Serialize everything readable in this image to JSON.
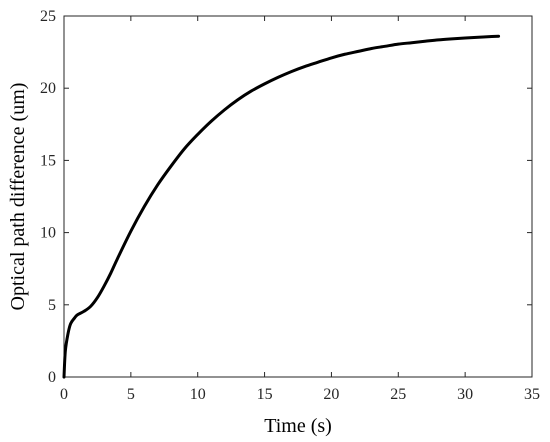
{
  "chart_data": {
    "type": "line",
    "title": "",
    "xlabel": "Time (s)",
    "ylabel": "Optical path difference (um)",
    "xlim": [
      0,
      35
    ],
    "ylim": [
      0,
      25
    ],
    "xticks": [
      0,
      5,
      10,
      15,
      20,
      25,
      30,
      35
    ],
    "yticks": [
      0,
      5,
      10,
      15,
      20,
      25
    ],
    "grid": false,
    "legend": "none",
    "box": true,
    "line_color": "#000000",
    "series": [
      {
        "x": [
          0,
          0.1,
          0.3,
          0.5,
          0.8,
          1.0,
          1.5,
          2.0,
          2.5,
          3.0,
          3.5,
          4.0,
          5.0,
          6.0,
          7.0,
          8.0,
          9.0,
          10.0,
          11.0,
          12.0,
          13.0,
          14.0,
          15.0,
          16.0,
          17.0,
          18.0,
          19.0,
          20.0,
          21.0,
          22.0,
          23.0,
          24.0,
          25.0,
          26.0,
          27.0,
          28.0,
          29.0,
          30.0,
          31.0,
          32.0,
          32.5
        ],
        "y": [
          0,
          1.8,
          3.0,
          3.7,
          4.1,
          4.3,
          4.55,
          4.9,
          5.5,
          6.3,
          7.2,
          8.2,
          10.1,
          11.8,
          13.3,
          14.6,
          15.8,
          16.8,
          17.7,
          18.5,
          19.2,
          19.8,
          20.3,
          20.75,
          21.15,
          21.5,
          21.8,
          22.1,
          22.35,
          22.55,
          22.75,
          22.9,
          23.05,
          23.15,
          23.25,
          23.35,
          23.42,
          23.48,
          23.53,
          23.58,
          23.6
        ]
      }
    ]
  }
}
